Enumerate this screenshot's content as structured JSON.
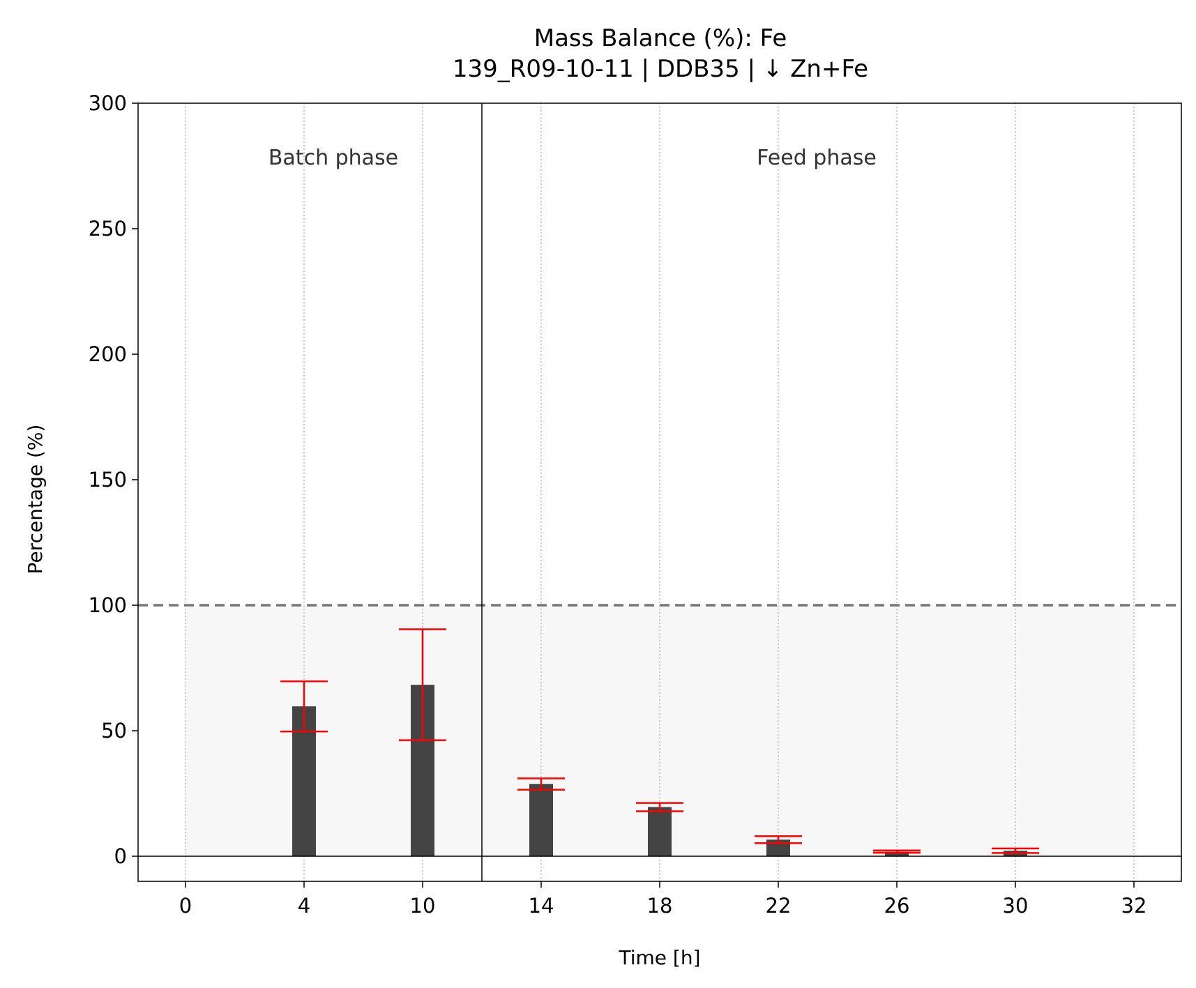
{
  "chart_data": {
    "type": "bar",
    "title": "Mass Balance (%): Fe",
    "subtitle": "139_R09-10-11 | DDB35 | ↓ Zn+Fe",
    "xlabel": "Time [h]",
    "ylabel": "Percentage (%)",
    "categories": [
      "0",
      "4",
      "10",
      "14",
      "18",
      "22",
      "26",
      "30",
      "32"
    ],
    "values": [
      null,
      59.7,
      68.3,
      28.8,
      19.6,
      6.6,
      1.8,
      2.2,
      null
    ],
    "error_low": [
      null,
      49.7,
      46.2,
      26.5,
      17.9,
      5.2,
      1.4,
      1.3,
      null
    ],
    "error_high": [
      null,
      69.7,
      90.4,
      31.0,
      21.2,
      8.0,
      2.3,
      3.1,
      null
    ],
    "yticks": [
      0,
      50,
      100,
      150,
      200,
      250,
      300
    ],
    "ylim": [
      -10,
      300
    ],
    "reference_line": 100,
    "phases": [
      {
        "label": "Batch phase"
      },
      {
        "label": "Feed phase"
      }
    ],
    "grid": "vertical dotted",
    "colors": {
      "bar": "#444444",
      "error": "#ff0000",
      "reference": "#777777",
      "band": "#f7f7f7",
      "grid": "#999999"
    }
  }
}
